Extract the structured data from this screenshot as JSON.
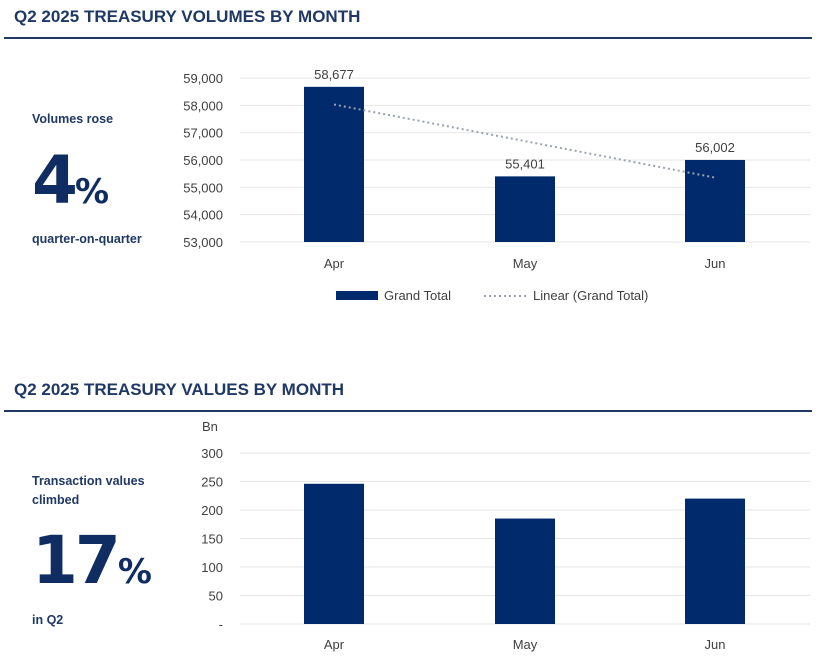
{
  "colors": {
    "bar": "#002a6c",
    "trend": "#9aa3ad",
    "grid": "#e6e6e6",
    "heading": "#1f3864"
  },
  "section1": {
    "title": "Q2 2025 TREASURY VOLUMES BY MONTH",
    "kpi_label": "Volumes rose",
    "kpi_value": "4",
    "kpi_unit": "%",
    "kpi_sub": "quarter-on-quarter"
  },
  "section2": {
    "title": "Q2 2025 TREASURY VALUES BY MONTH",
    "kpi_label": "Transaction values climbed",
    "kpi_value": "17",
    "kpi_unit": "%",
    "kpi_sub": "in Q2"
  },
  "chart_data": [
    {
      "type": "bar",
      "categories": [
        "Apr",
        "May",
        "Jun"
      ],
      "series": [
        {
          "name": "Grand Total",
          "values": [
            58677,
            55401,
            56002
          ]
        }
      ],
      "trendline": {
        "name": "Linear (Grand Total)",
        "type": "linear",
        "values": [
          58031,
          56693,
          55356
        ]
      },
      "data_labels": [
        "58,677",
        "55,401",
        "56,002"
      ],
      "yticks": [
        "53,000",
        "54,000",
        "55,000",
        "56,000",
        "57,000",
        "58,000",
        "59,000"
      ],
      "ylim": [
        53000,
        59000
      ],
      "grid": true,
      "legend": "bottom"
    },
    {
      "type": "bar",
      "categories": [
        "Apr",
        "May",
        "Jun"
      ],
      "series": [
        {
          "values": [
            246,
            185,
            220
          ]
        }
      ],
      "ylabel": "Bn",
      "yticks": [
        "-",
        "50",
        "100",
        "150",
        "200",
        "250",
        "300"
      ],
      "ylim": [
        0,
        300
      ],
      "grid": true
    }
  ]
}
